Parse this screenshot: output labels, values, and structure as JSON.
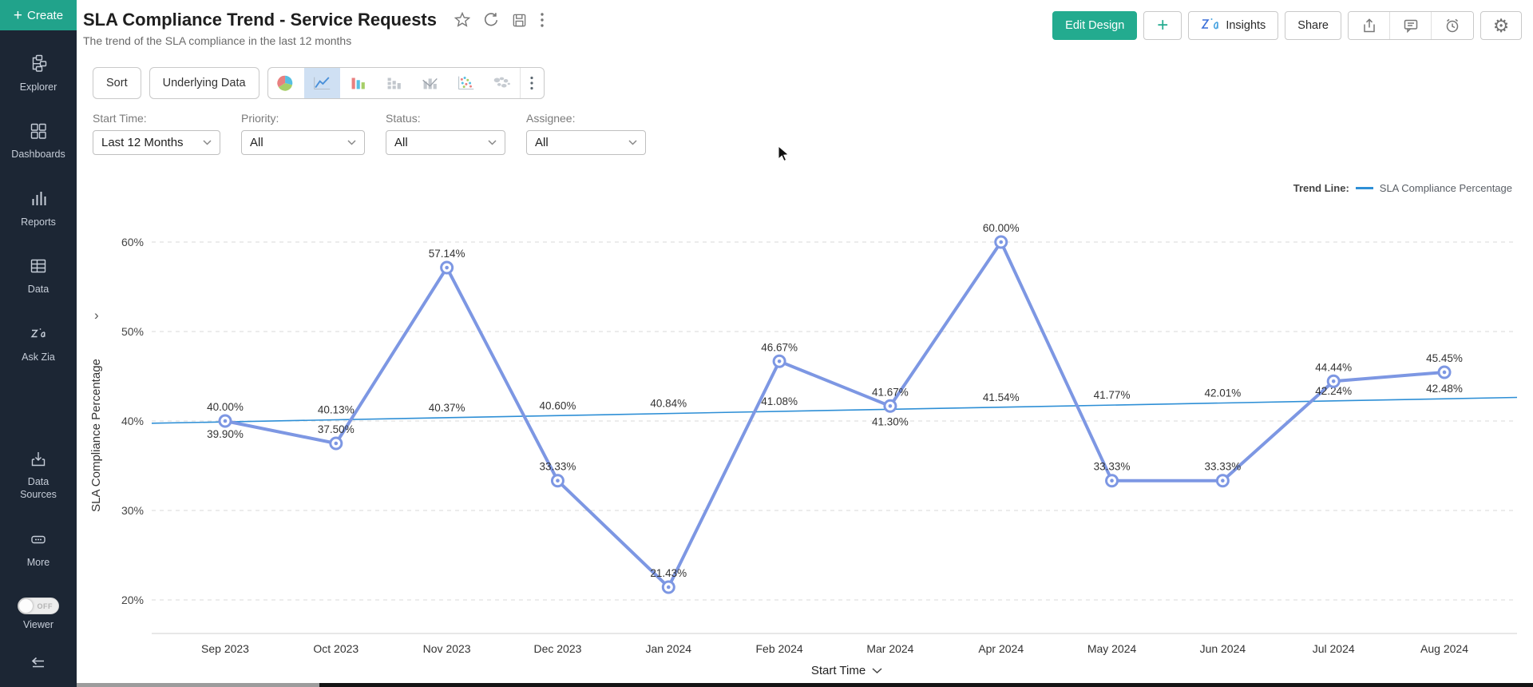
{
  "sidebar": {
    "create_label": "Create",
    "items": [
      {
        "label": "Explorer"
      },
      {
        "label": "Dashboards"
      },
      {
        "label": "Reports"
      },
      {
        "label": "Data"
      },
      {
        "label": "Ask Zia"
      },
      {
        "label": "Data Sources"
      },
      {
        "label": "More"
      }
    ],
    "viewer_toggle": {
      "label": "Viewer",
      "state": "OFF"
    }
  },
  "header": {
    "title": "SLA Compliance Trend - Service Requests",
    "subtitle": "The trend of the SLA compliance in the last 12 months",
    "edit_design_label": "Edit Design",
    "insights_label": "Insights",
    "share_label": "Share"
  },
  "toolbar": {
    "sort_label": "Sort",
    "underlying_data_label": "Underlying Data",
    "chart_types": [
      "pie",
      "line",
      "bar",
      "stacked-bar",
      "combo-bar",
      "scatter",
      "map"
    ],
    "selected_chart_type": "line"
  },
  "filters": [
    {
      "label": "Start Time:",
      "value": "Last 12 Months"
    },
    {
      "label": "Priority:",
      "value": "All"
    },
    {
      "label": "Status:",
      "value": "All"
    },
    {
      "label": "Assignee:",
      "value": "All"
    }
  ],
  "legend": {
    "label": "Trend Line:",
    "series_name": "SLA Compliance Percentage"
  },
  "colors": {
    "accent_teal": "#23ab8f",
    "series_line": "#7d97e3",
    "trend_line": "#2e8fd6",
    "sidebar_bg": "#1c2634",
    "selected_icon_bg": "#cfe0f3"
  },
  "chart_data": {
    "type": "line",
    "title": "SLA Compliance Trend - Service Requests",
    "x": [
      "Sep 2023",
      "Oct 2023",
      "Nov 2023",
      "Dec 2023",
      "Jan 2024",
      "Feb 2024",
      "Mar 2024",
      "Apr 2024",
      "May 2024",
      "Jun 2024",
      "Jul 2024",
      "Aug 2024"
    ],
    "series": [
      {
        "name": "SLA Compliance Percentage",
        "type": "line-with-markers",
        "values": [
          40.0,
          37.5,
          57.14,
          33.33,
          21.43,
          46.67,
          41.67,
          60.0,
          33.33,
          33.33,
          44.44,
          45.45
        ],
        "labels": [
          "40.00%",
          "37.50%",
          "57.14%",
          "33.33%",
          "21.43%",
          "46.67%",
          "41.67%",
          "60.00%",
          "33.33%",
          "33.33%",
          "44.44%",
          "45.45%"
        ]
      },
      {
        "name": "Trend Line",
        "type": "trend",
        "values": [
          39.9,
          40.13,
          40.37,
          40.6,
          40.84,
          41.08,
          41.3,
          41.54,
          41.77,
          42.01,
          42.24,
          42.48
        ],
        "labels": [
          "39.90%",
          "40.13%",
          "40.37%",
          "40.60%",
          "40.84%",
          "41.08%",
          "41.30%",
          "41.54%",
          "41.77%",
          "42.01%",
          "42.24%",
          "42.48%"
        ]
      }
    ],
    "xlabel": "Start Time",
    "ylabel": "SLA Compliance Percentage",
    "yticks": [
      {
        "label": "20%",
        "value": 20
      },
      {
        "label": "30%",
        "value": 30
      },
      {
        "label": "40%",
        "value": 40
      },
      {
        "label": "50%",
        "value": 50
      },
      {
        "label": "60%",
        "value": 60
      }
    ],
    "ylim": [
      17.5,
      62
    ],
    "grid": "horizontal-dashed",
    "legend_position": "top-right"
  }
}
